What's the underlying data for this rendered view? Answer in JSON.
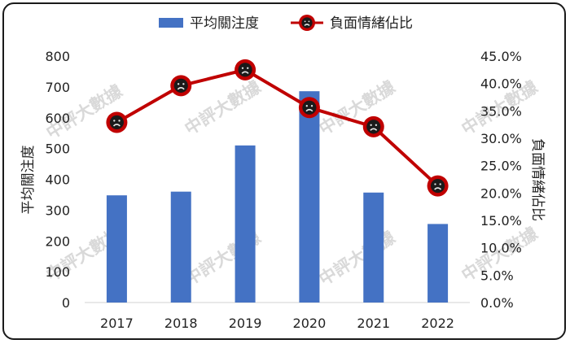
{
  "watermark": "中評大數據",
  "chart_data": {
    "type": "bar+line",
    "categories": [
      "2017",
      "2018",
      "2019",
      "2020",
      "2021",
      "2022"
    ],
    "series": [
      {
        "name": "平均關注度",
        "type": "bar",
        "axis": "left",
        "color": "#4472C4",
        "values": [
          348,
          360,
          510,
          686,
          357,
          255
        ]
      },
      {
        "name": "負面情緒佔比",
        "type": "line",
        "axis": "right",
        "color": "#C00000",
        "marker": "sad-face-icon",
        "values": [
          32.9,
          39.6,
          42.5,
          35.6,
          32.1,
          21.3
        ]
      }
    ],
    "ylabel": "平均關注度",
    "y2label": "負面情緒佔比",
    "ylim": [
      0,
      800
    ],
    "yticks": [
      "0",
      "100",
      "200",
      "300",
      "400",
      "500",
      "600",
      "700",
      "800"
    ],
    "y2lim": [
      0,
      45
    ],
    "y2ticks": [
      "0.0%",
      "5.0%",
      "10.0%",
      "15.0%",
      "20.0%",
      "25.0%",
      "30.0%",
      "35.0%",
      "40.0%",
      "45.0%"
    ],
    "legend_position": "top",
    "grid": false
  }
}
